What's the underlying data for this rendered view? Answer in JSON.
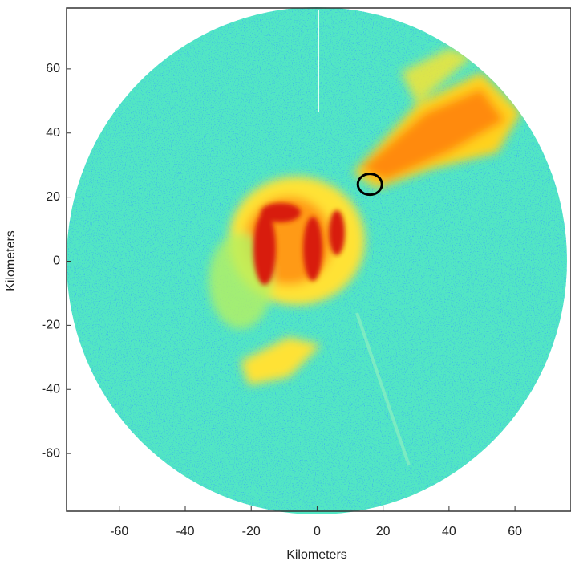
{
  "chart_data": {
    "type": "image",
    "xlabel": "Kilometers",
    "ylabel": "Kilometers",
    "xlim": [
      -76,
      77
    ],
    "ylim": [
      -78,
      79
    ],
    "xticks": [
      -60,
      -40,
      -20,
      0,
      20,
      40,
      60
    ],
    "yticks": [
      -60,
      -40,
      -20,
      0,
      20,
      40,
      60
    ],
    "points": {
      "x": [
        16
      ],
      "y": [
        24
      ],
      "color": "#000000"
    }
  }
}
